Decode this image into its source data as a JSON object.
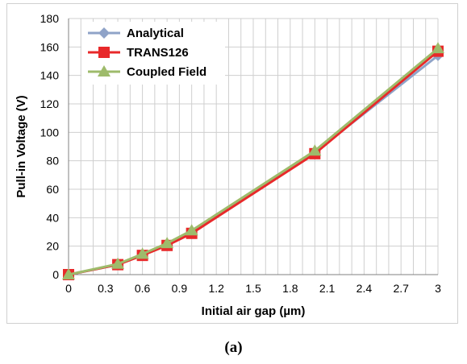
{
  "caption": "(a)",
  "chart_data": {
    "type": "line",
    "xlabel": "Initial air gap (µm)",
    "ylabel": "Pull-in Voltage (V)",
    "xlim": [
      0,
      3
    ],
    "ylim": [
      0,
      180
    ],
    "x_ticks": [
      "0",
      "0.3",
      "0.6",
      "0.9",
      "1.2",
      "1.5",
      "1.8",
      "2.1",
      "2.4",
      "2.7",
      "3"
    ],
    "y_ticks": [
      "0",
      "20",
      "40",
      "60",
      "80",
      "100",
      "120",
      "140",
      "160",
      "180"
    ],
    "minor_x_step": 0.1,
    "grid": true,
    "legend_position": "top-left",
    "x": [
      0,
      0.4,
      0.6,
      0.8,
      1.0,
      2.0,
      3.0
    ],
    "series": [
      {
        "name": "Analytical",
        "marker": "diamond",
        "color": "#8fa3c8",
        "values": [
          0,
          7,
          14,
          21,
          30,
          86,
          154
        ]
      },
      {
        "name": "TRANS126",
        "marker": "square",
        "color": "#e8292a",
        "values": [
          0,
          7,
          13.5,
          20.5,
          29,
          85,
          157
        ]
      },
      {
        "name": "Coupled Field",
        "marker": "triangle",
        "color": "#9ebb6b",
        "values": [
          0,
          7.5,
          14.5,
          22,
          31,
          87,
          159
        ]
      }
    ]
  }
}
